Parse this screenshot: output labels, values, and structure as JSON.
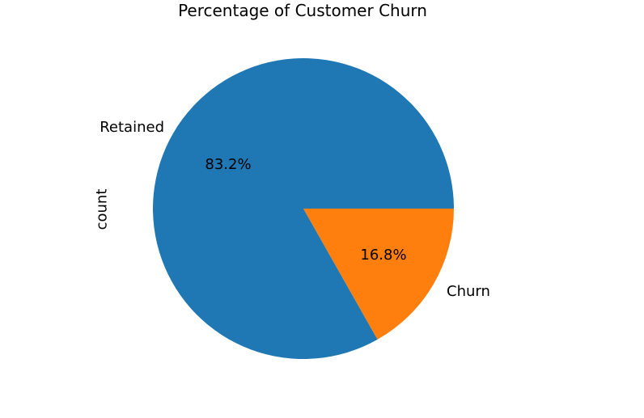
{
  "chart_data": {
    "type": "pie",
    "title": "Percentage of Customer Churn",
    "ylabel": "count",
    "categories": [
      "Retained",
      "Churn"
    ],
    "values": [
      83.2,
      16.8
    ],
    "pct_labels": [
      "83.2%",
      "16.8%"
    ],
    "colors": [
      "#1f77b4",
      "#ff7f0e"
    ],
    "start_angle": 0,
    "direction": "counterclockwise",
    "legend": "none",
    "background": "#ffffff",
    "text_color": "#000000"
  }
}
